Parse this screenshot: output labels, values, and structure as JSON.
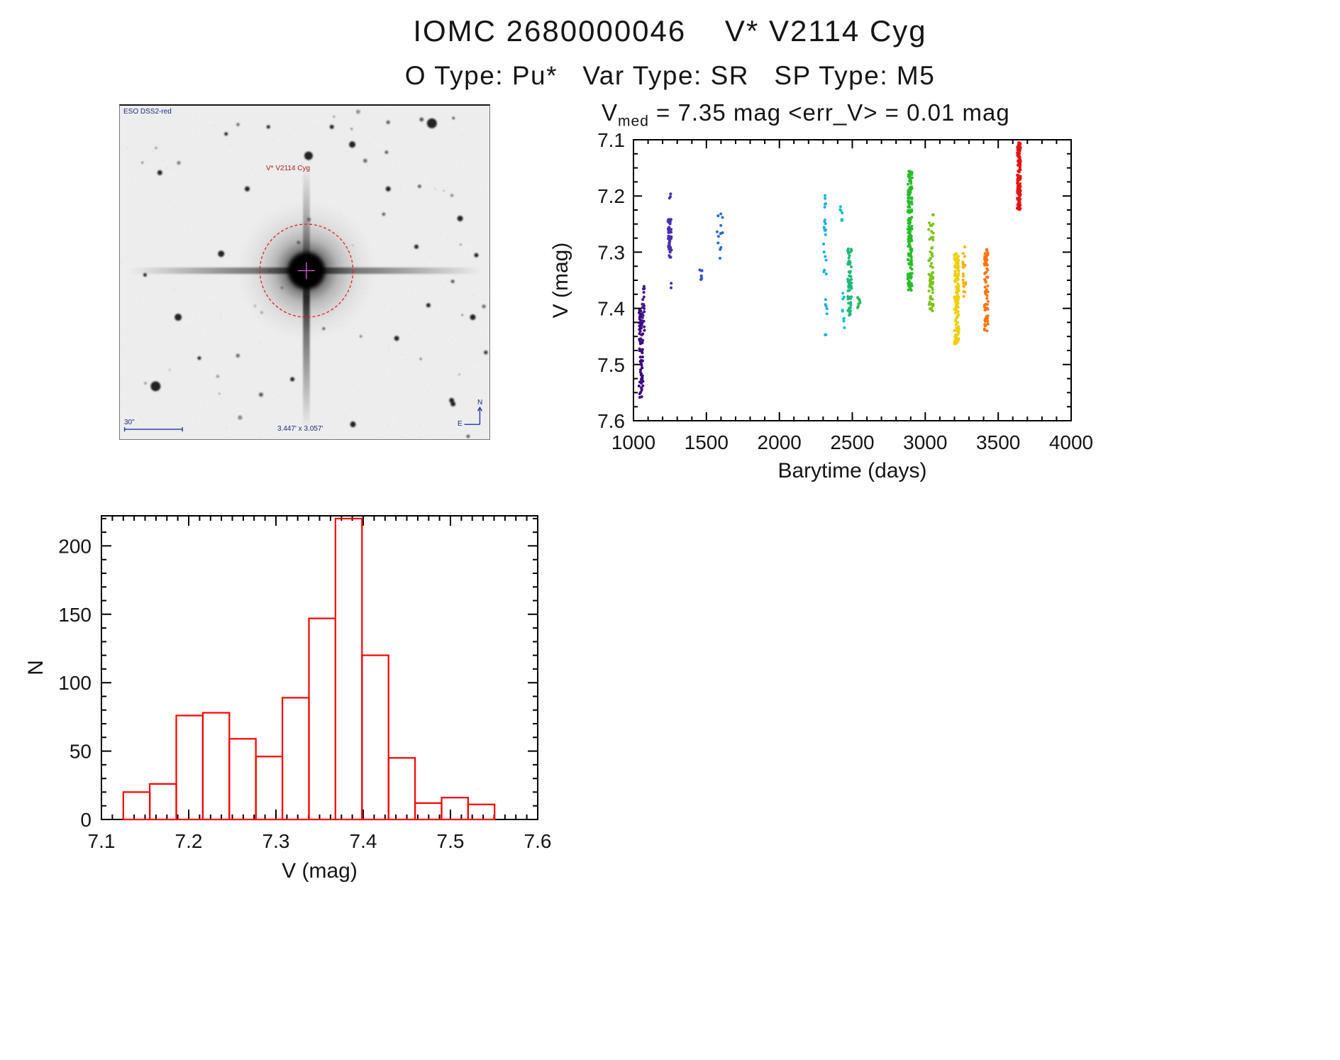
{
  "header": {
    "title": "IOMC 2680000046    V* V2114 Cyg",
    "subtitle": "O Type: Pu*   Var Type: SR   SP Type: M5"
  },
  "finder": {
    "survey_label": "ESO DSS2-red",
    "target_label": "V* V2114 Cyg",
    "scale_label": "30\"",
    "fov_label": "3.447' x 3.057'",
    "compass_north": "N",
    "compass_east": "E"
  },
  "lightcurve_title": {
    "v": "V",
    "sub": "med",
    "rest": " = 7.35 mag <err_V> = 0.01 mag"
  },
  "chart_data": [
    {
      "id": "lightcurve",
      "type": "scatter",
      "title": "Vmed = 7.35 mag <err_V> = 0.01 mag",
      "xlabel": "Barytime (days)",
      "ylabel": "V (mag)",
      "xlim": [
        1000,
        4000
      ],
      "ylim": [
        7.6,
        7.1
      ],
      "y_axis_inverted": true,
      "xticks": [
        1000,
        1500,
        2000,
        2500,
        3000,
        3500,
        4000
      ],
      "xtick_labels": [
        "1000",
        "1500",
        "2000",
        "2500",
        "3000",
        "3500",
        "4000"
      ],
      "yticks": [
        7.1,
        7.2,
        7.3,
        7.4,
        7.5,
        7.6
      ],
      "ytick_labels": [
        "7.1",
        "7.2",
        "7.3",
        "7.4",
        "7.5",
        "7.6"
      ],
      "legend": "none",
      "grid": false,
      "clusters": [
        {
          "x": 1052,
          "x_spread": 14,
          "y_min": 7.4,
          "y_max": 7.56,
          "n": 70,
          "color": "#3c0a80"
        },
        {
          "x": 1068,
          "x_spread": 8,
          "y_min": 7.355,
          "y_max": 7.44,
          "n": 20,
          "color": "#46188c"
        },
        {
          "x": 1248,
          "x_spread": 12,
          "y_min": 7.24,
          "y_max": 7.31,
          "n": 45,
          "color": "#4a2fb4"
        },
        {
          "x": 1250,
          "x_spread": 6,
          "y_min": 7.195,
          "y_max": 7.215,
          "n": 3,
          "color": "#4a2fb4"
        },
        {
          "x": 1260,
          "x_spread": 4,
          "y_min": 7.355,
          "y_max": 7.365,
          "n": 2,
          "color": "#4a2fb4"
        },
        {
          "x": 1462,
          "x_spread": 10,
          "y_min": 7.32,
          "y_max": 7.35,
          "n": 8,
          "color": "#3452cc"
        },
        {
          "x": 1592,
          "x_spread": 22,
          "y_min": 7.23,
          "y_max": 7.315,
          "n": 13,
          "color": "#2a6ad8"
        },
        {
          "x": 2312,
          "x_spread": 10,
          "y_min": 7.24,
          "y_max": 7.34,
          "n": 16,
          "color": "#16b2dc"
        },
        {
          "x": 2316,
          "x_spread": 8,
          "y_min": 7.19,
          "y_max": 7.22,
          "n": 5,
          "color": "#16b2dc"
        },
        {
          "x": 2322,
          "x_spread": 8,
          "y_min": 7.38,
          "y_max": 7.45,
          "n": 7,
          "color": "#16b2dc"
        },
        {
          "x": 2425,
          "x_spread": 8,
          "y_min": 7.195,
          "y_max": 7.25,
          "n": 8,
          "color": "#0cc4c4"
        },
        {
          "x": 2440,
          "x_spread": 8,
          "y_min": 7.37,
          "y_max": 7.44,
          "n": 9,
          "color": "#0cc4c4"
        },
        {
          "x": 2482,
          "x_spread": 13,
          "y_min": 7.29,
          "y_max": 7.42,
          "n": 60,
          "color": "#1eb878"
        },
        {
          "x": 2545,
          "x_spread": 9,
          "y_min": 7.38,
          "y_max": 7.41,
          "n": 8,
          "color": "#2cba55"
        },
        {
          "x": 2895,
          "x_spread": 15,
          "y_min": 7.15,
          "y_max": 7.37,
          "n": 160,
          "color": "#28bc28"
        },
        {
          "x": 3040,
          "x_spread": 16,
          "y_min": 7.23,
          "y_max": 7.405,
          "n": 70,
          "color": "#7cc414"
        },
        {
          "x": 3215,
          "x_spread": 16,
          "y_min": 7.3,
          "y_max": 7.465,
          "n": 130,
          "color": "#eed000"
        },
        {
          "x": 3268,
          "x_spread": 10,
          "y_min": 7.29,
          "y_max": 7.38,
          "n": 22,
          "color": "#ffb000"
        },
        {
          "x": 3418,
          "x_spread": 13,
          "y_min": 7.295,
          "y_max": 7.44,
          "n": 70,
          "color": "#ff7410"
        },
        {
          "x": 3642,
          "x_spread": 11,
          "y_min": 7.105,
          "y_max": 7.225,
          "n": 140,
          "color": "#e41414"
        }
      ]
    },
    {
      "id": "histogram",
      "type": "bar",
      "title": "",
      "xlabel": "V (mag)",
      "ylabel": "N",
      "xlim": [
        7.1,
        7.6
      ],
      "ylim": [
        0,
        222
      ],
      "xticks": [
        7.1,
        7.2,
        7.3,
        7.4,
        7.5,
        7.6
      ],
      "xtick_labels": [
        "7.1",
        "7.2",
        "7.3",
        "7.4",
        "7.5",
        "7.6"
      ],
      "yticks": [
        0,
        50,
        100,
        150,
        200
      ],
      "ytick_labels": [
        "0",
        "50",
        "100",
        "150",
        "200"
      ],
      "bin_start": 7.125,
      "bin_width": 0.0304,
      "values": [
        20,
        26,
        76,
        78,
        59,
        46,
        89,
        147,
        220,
        120,
        45,
        12,
        16,
        11
      ],
      "bar_color": "#ff0000",
      "grid": false
    }
  ]
}
